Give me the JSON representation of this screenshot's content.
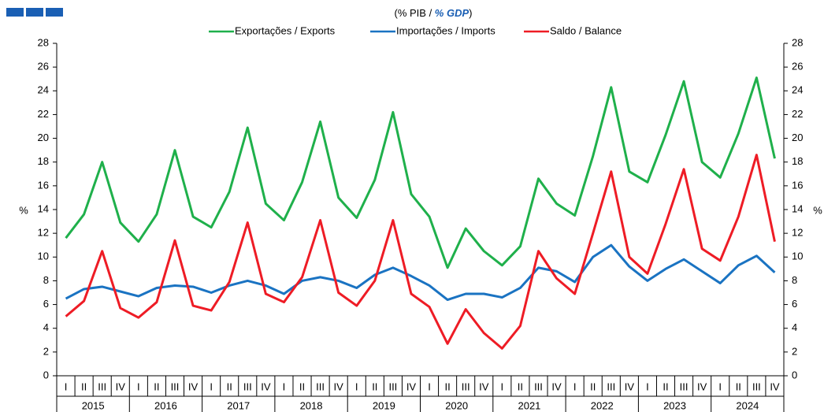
{
  "chart_data": {
    "type": "line",
    "subtitle": [
      "(% PIB / ",
      "% GDP",
      ")"
    ],
    "ylabel": "%",
    "categories": [
      "I",
      "II",
      "III",
      "IV",
      "I",
      "II",
      "III",
      "IV",
      "I",
      "II",
      "III",
      "IV",
      "I",
      "II",
      "III",
      "IV",
      "I",
      "II",
      "III",
      "IV",
      "I",
      "II",
      "III",
      "IV",
      "I",
      "II",
      "III",
      "IV",
      "I",
      "II",
      "III",
      "IV",
      "I",
      "II",
      "III",
      "IV",
      "I",
      "II",
      "III",
      "IV"
    ],
    "years": [
      "2015",
      "2016",
      "2017",
      "2018",
      "2019",
      "2020",
      "2021",
      "2022",
      "2023",
      "2024"
    ],
    "series": [
      {
        "name": "Exportações / Exports",
        "color": "#1fb04b",
        "values": [
          11.6,
          13.6,
          18.0,
          12.9,
          11.3,
          13.6,
          19.0,
          13.4,
          12.5,
          15.5,
          20.9,
          14.5,
          13.1,
          16.3,
          21.4,
          15.0,
          13.3,
          16.5,
          22.2,
          15.3,
          13.4,
          9.1,
          12.4,
          10.5,
          9.3,
          10.9,
          16.6,
          14.5,
          13.5,
          18.5,
          24.3,
          17.2,
          16.3,
          20.3,
          24.8,
          18.0,
          16.7,
          20.4,
          25.1,
          18.3
        ]
      },
      {
        "name": "Importações / Imports",
        "color": "#1a73c2",
        "values": [
          6.5,
          7.3,
          7.5,
          7.1,
          6.7,
          7.4,
          7.6,
          7.5,
          7.0,
          7.6,
          8.0,
          7.6,
          6.9,
          8.0,
          8.3,
          8.0,
          7.4,
          8.5,
          9.1,
          8.4,
          7.6,
          6.4,
          6.9,
          6.9,
          6.6,
          7.4,
          9.1,
          8.8,
          7.9,
          10.0,
          11.0,
          9.2,
          8.0,
          9.0,
          9.8,
          8.8,
          7.8,
          9.3,
          10.1,
          8.7
        ]
      },
      {
        "name": "Saldo / Balance",
        "color": "#ee1c25",
        "values": [
          5.0,
          6.3,
          10.5,
          5.7,
          4.9,
          6.2,
          11.4,
          5.9,
          5.5,
          7.9,
          12.9,
          6.9,
          6.2,
          8.3,
          13.1,
          7.0,
          5.9,
          8.0,
          13.1,
          6.9,
          5.8,
          2.7,
          5.6,
          3.6,
          2.3,
          4.2,
          10.5,
          8.2,
          6.9,
          12.0,
          17.2,
          10.0,
          8.6,
          12.8,
          17.4,
          10.7,
          9.7,
          13.4,
          18.6,
          11.3
        ]
      }
    ],
    "ylim": [
      0,
      28
    ],
    "yticks": [
      0,
      2,
      4,
      6,
      8,
      10,
      12,
      14,
      16,
      18,
      20,
      22,
      24,
      26,
      28
    ],
    "grid": false
  }
}
